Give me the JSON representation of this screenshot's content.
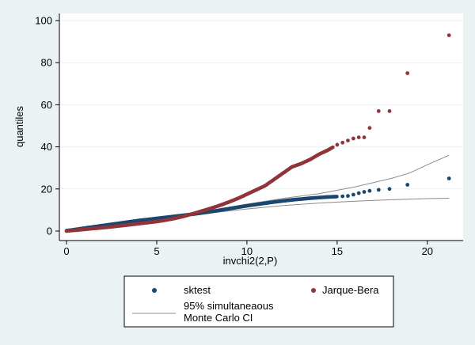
{
  "chart_data": {
    "type": "scatter",
    "xlabel": "invchi2(2,P)",
    "ylabel": "quantiles",
    "xlim": [
      0,
      21.5
    ],
    "ylim": [
      0,
      100
    ],
    "xticks": [
      0,
      5,
      10,
      15,
      20
    ],
    "yticks": [
      0,
      20,
      40,
      60,
      80,
      100
    ],
    "grid": "horizontal",
    "legend_position": "bottom",
    "colors": {
      "sktest": "#1A476F",
      "jarque": "#90353B",
      "ci": "#8C8C8C"
    },
    "series": [
      {
        "name": "sktest",
        "type": "scatter",
        "values": [
          [
            0,
            0.2
          ],
          [
            0.3,
            0.5
          ],
          [
            0.6,
            0.9
          ],
          [
            1,
            1.4
          ],
          [
            1.5,
            2.0
          ],
          [
            2,
            2.6
          ],
          [
            2.5,
            3.2
          ],
          [
            3,
            3.8
          ],
          [
            3.5,
            4.4
          ],
          [
            4,
            5.0
          ],
          [
            4.5,
            5.5
          ],
          [
            5,
            6.0
          ],
          [
            5.5,
            6.5
          ],
          [
            6,
            7.0
          ],
          [
            6.5,
            7.5
          ],
          [
            7,
            8.0
          ],
          [
            7.5,
            8.6
          ],
          [
            8,
            9.2
          ],
          [
            8.5,
            9.9
          ],
          [
            9,
            10.6
          ],
          [
            9.5,
            11.3
          ],
          [
            10,
            12.0
          ],
          [
            10.5,
            12.6
          ],
          [
            11,
            13.2
          ],
          [
            11.5,
            13.8
          ],
          [
            12,
            14.3
          ],
          [
            12.5,
            14.8
          ],
          [
            13,
            15.2
          ],
          [
            13.5,
            15.6
          ],
          [
            14,
            15.9
          ],
          [
            14.5,
            16.2
          ],
          [
            14.8,
            16.3
          ],
          [
            15,
            16.4
          ],
          [
            15.3,
            16.5
          ],
          [
            15.6,
            16.7
          ],
          [
            15.9,
            17.3
          ],
          [
            16.2,
            18.0
          ],
          [
            16.5,
            18.6
          ],
          [
            16.8,
            19.1
          ],
          [
            17.3,
            19.6
          ],
          [
            17.9,
            20.0
          ],
          [
            18.9,
            22.0
          ],
          [
            21.2,
            25.0
          ]
        ]
      },
      {
        "name": "Jarque-Bera",
        "type": "scatter",
        "values": [
          [
            0,
            0
          ],
          [
            0.5,
            0.4
          ],
          [
            1,
            0.8
          ],
          [
            1.5,
            1.2
          ],
          [
            2,
            1.6
          ],
          [
            2.5,
            2.0
          ],
          [
            3,
            2.5
          ],
          [
            3.5,
            3.0
          ],
          [
            4,
            3.5
          ],
          [
            4.5,
            4.0
          ],
          [
            5,
            4.5
          ],
          [
            5.5,
            5.2
          ],
          [
            6,
            6.0
          ],
          [
            6.5,
            7.0
          ],
          [
            7,
            8.2
          ],
          [
            7.5,
            9.5
          ],
          [
            8,
            10.8
          ],
          [
            8.5,
            12.2
          ],
          [
            9,
            13.8
          ],
          [
            9.5,
            15.5
          ],
          [
            10,
            17.5
          ],
          [
            10.5,
            19.5
          ],
          [
            11,
            21.5
          ],
          [
            11.5,
            24.5
          ],
          [
            12,
            27.5
          ],
          [
            12.5,
            30.5
          ],
          [
            13,
            32.0
          ],
          [
            13.5,
            34.0
          ],
          [
            14,
            36.5
          ],
          [
            14.5,
            38.5
          ],
          [
            15,
            41.0
          ],
          [
            15.3,
            42.0
          ],
          [
            15.6,
            43.0
          ],
          [
            15.9,
            44.0
          ],
          [
            16.2,
            44.5
          ],
          [
            16.5,
            44.5
          ],
          [
            16.8,
            49.0
          ],
          [
            17.3,
            57.0
          ],
          [
            17.9,
            57.0
          ],
          [
            18.9,
            75.0
          ],
          [
            21.2,
            93.0
          ]
        ]
      },
      {
        "name": "95% simultaneaous Monte Carlo CI",
        "type": "line",
        "upper": [
          [
            0,
            0.5
          ],
          [
            2,
            3.0
          ],
          [
            4,
            5.6
          ],
          [
            6,
            7.5
          ],
          [
            8,
            9.8
          ],
          [
            10,
            12.8
          ],
          [
            12,
            15.5
          ],
          [
            14,
            17.8
          ],
          [
            16,
            21.0
          ],
          [
            18,
            25.0
          ],
          [
            19,
            27.5
          ],
          [
            20,
            31.5
          ],
          [
            21.2,
            36.0
          ]
        ],
        "lower": [
          [
            0,
            0.1
          ],
          [
            2,
            2.1
          ],
          [
            4,
            4.6
          ],
          [
            6,
            6.6
          ],
          [
            8,
            8.6
          ],
          [
            10,
            10.5
          ],
          [
            12,
            12.1
          ],
          [
            14,
            13.3
          ],
          [
            16,
            14.2
          ],
          [
            18,
            14.9
          ],
          [
            20,
            15.4
          ],
          [
            21.2,
            15.6
          ]
        ]
      }
    ],
    "legend": {
      "sktest": "sktest",
      "jarque": "Jarque-Bera",
      "ci_line1": "95% simultaneaous",
      "ci_line2": "Monte Carlo CI"
    }
  }
}
